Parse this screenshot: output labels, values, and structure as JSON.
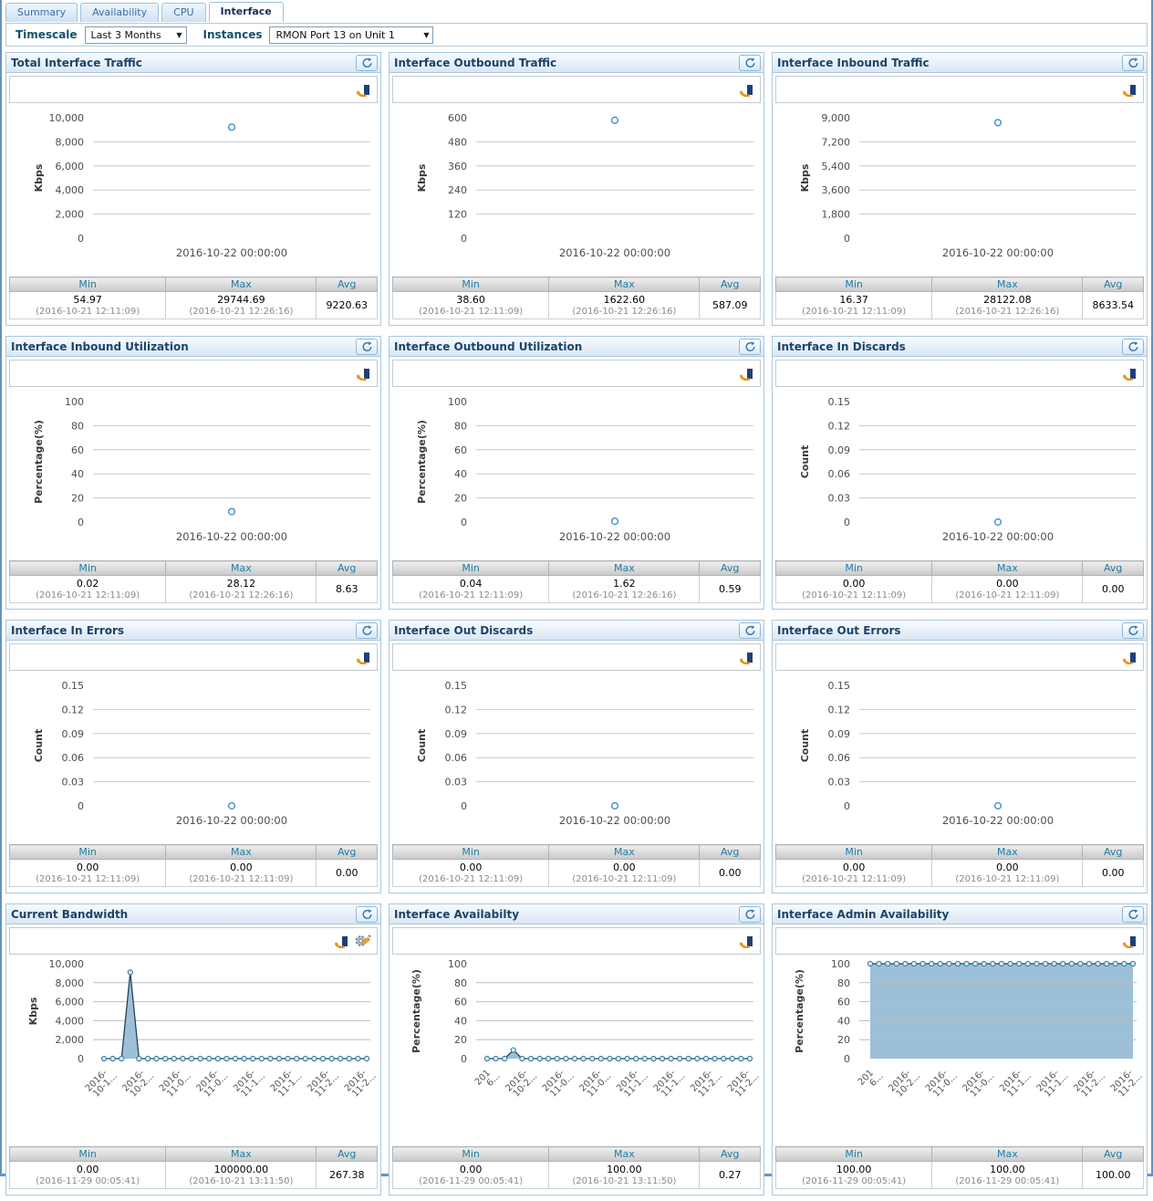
{
  "tabs": [
    {
      "label": "Summary",
      "active": false
    },
    {
      "label": "Availability",
      "active": false
    },
    {
      "label": "CPU",
      "active": false
    },
    {
      "label": "Interface",
      "active": true
    }
  ],
  "filters": {
    "timescale_label": "Timescale",
    "timescale_value": "Last 3 Months",
    "instances_label": "Instances",
    "instances_value": "RMON Port 13 on Unit 1"
  },
  "stats_headers": [
    "Min",
    "Max",
    "Avg"
  ],
  "colors": {
    "accent": "#2e6da4",
    "panel_border": "#a9c7de",
    "title_text": "#1d4368",
    "stats_header_text": "#1f7ca3",
    "area_fill": "#9cc0d8",
    "point_stroke": "#4898c8",
    "gridline": "#c9c9c9"
  },
  "chart_data": [
    {
      "title": "Total Interface Traffic",
      "type": "point",
      "ylabel": "Kbps",
      "ymax": 10000,
      "yticks": [
        "10,000",
        "8,000",
        "6,000",
        "4,000",
        "2,000",
        "0"
      ],
      "point_value": 9220.63,
      "xlabel": "2016-10-22 00:00:00",
      "icons": [
        "chart-type"
      ],
      "stats": {
        "min": "54.97",
        "min_time": "(2016-10-21 12:11:09)",
        "max": "29744.69",
        "max_time": "(2016-10-21 12:26:16)",
        "avg": "9220.63"
      }
    },
    {
      "title": "Interface Outbound Traffic",
      "type": "point",
      "ylabel": "Kbps",
      "ymax": 600,
      "yticks": [
        "600",
        "480",
        "360",
        "240",
        "120",
        "0"
      ],
      "point_value": 587.09,
      "xlabel": "2016-10-22 00:00:00",
      "icons": [
        "chart-type"
      ],
      "stats": {
        "min": "38.60",
        "min_time": "(2016-10-21 12:11:09)",
        "max": "1622.60",
        "max_time": "(2016-10-21 12:26:16)",
        "avg": "587.09"
      }
    },
    {
      "title": "Interface Inbound Traffic",
      "type": "point",
      "ylabel": "Kbps",
      "ymax": 9000,
      "yticks": [
        "9,000",
        "7,200",
        "5,400",
        "3,600",
        "1,800",
        "0"
      ],
      "point_value": 8633.54,
      "xlabel": "2016-10-22 00:00:00",
      "icons": [
        "chart-type"
      ],
      "stats": {
        "min": "16.37",
        "min_time": "(2016-10-21 12:11:09)",
        "max": "28122.08",
        "max_time": "(2016-10-21 12:26:16)",
        "avg": "8633.54"
      }
    },
    {
      "title": "Interface Inbound Utilization",
      "type": "point",
      "ylabel": "Percentage(%)",
      "ymax": 100,
      "yticks": [
        "100",
        "80",
        "60",
        "40",
        "20",
        "0"
      ],
      "point_value": 8.63,
      "xlabel": "2016-10-22 00:00:00",
      "icons": [
        "chart-type"
      ],
      "stats": {
        "min": "0.02",
        "min_time": "(2016-10-21 12:11:09)",
        "max": "28.12",
        "max_time": "(2016-10-21 12:26:16)",
        "avg": "8.63"
      }
    },
    {
      "title": "Interface Outbound Utilization",
      "type": "point",
      "ylabel": "Percentage(%)",
      "ymax": 100,
      "yticks": [
        "100",
        "80",
        "60",
        "40",
        "20",
        "0"
      ],
      "point_value": 0.59,
      "xlabel": "2016-10-22 00:00:00",
      "icons": [
        "chart-type"
      ],
      "stats": {
        "min": "0.04",
        "min_time": "(2016-10-21 12:11:09)",
        "max": "1.62",
        "max_time": "(2016-10-21 12:26:16)",
        "avg": "0.59"
      }
    },
    {
      "title": "Interface In Discards",
      "type": "point",
      "ylabel": "Count",
      "ymax": 0.15,
      "yticks": [
        "0.15",
        "0.12",
        "0.09",
        "0.06",
        "0.03",
        "0"
      ],
      "point_value": 0,
      "xlabel": "2016-10-22 00:00:00",
      "icons": [
        "chart-type"
      ],
      "stats": {
        "min": "0.00",
        "min_time": "(2016-10-21 12:11:09)",
        "max": "0.00",
        "max_time": "(2016-10-21 12:11:09)",
        "avg": "0.00"
      }
    },
    {
      "title": "Interface In Errors",
      "type": "point",
      "ylabel": "Count",
      "ymax": 0.15,
      "yticks": [
        "0.15",
        "0.12",
        "0.09",
        "0.06",
        "0.03",
        "0"
      ],
      "point_value": 0,
      "xlabel": "2016-10-22 00:00:00",
      "icons": [
        "chart-type"
      ],
      "stats": {
        "min": "0.00",
        "min_time": "(2016-10-21 12:11:09)",
        "max": "0.00",
        "max_time": "(2016-10-21 12:11:09)",
        "avg": "0.00"
      }
    },
    {
      "title": "Interface Out Discards",
      "type": "point",
      "ylabel": "Count",
      "ymax": 0.15,
      "yticks": [
        "0.15",
        "0.12",
        "0.09",
        "0.06",
        "0.03",
        "0"
      ],
      "point_value": 0,
      "xlabel": "2016-10-22 00:00:00",
      "icons": [
        "chart-type"
      ],
      "stats": {
        "min": "0.00",
        "min_time": "(2016-10-21 12:11:09)",
        "max": "0.00",
        "max_time": "(2016-10-21 12:11:09)",
        "avg": "0.00"
      }
    },
    {
      "title": "Interface Out Errors",
      "type": "point",
      "ylabel": "Count",
      "ymax": 0.15,
      "yticks": [
        "0.15",
        "0.12",
        "0.09",
        "0.06",
        "0.03",
        "0"
      ],
      "point_value": 0,
      "xlabel": "2016-10-22 00:00:00",
      "icons": [
        "chart-type"
      ],
      "stats": {
        "min": "0.00",
        "min_time": "(2016-10-21 12:11:09)",
        "max": "0.00",
        "max_time": "(2016-10-21 12:11:09)",
        "avg": "0.00"
      }
    },
    {
      "title": "Current Bandwidth",
      "type": "area",
      "ylabel": "Kbps",
      "ymax": 10000,
      "yticks": [
        "10,000",
        "8,000",
        "6,000",
        "4,000",
        "2,000",
        "0"
      ],
      "values": [
        0,
        0,
        0,
        9100,
        0,
        0,
        0,
        0,
        0,
        0,
        0,
        0,
        0,
        0,
        0,
        0,
        0,
        0,
        0,
        0,
        0,
        0,
        0,
        0,
        0,
        0,
        0,
        0,
        0,
        0,
        0
      ],
      "xticks": [
        [
          "2016-",
          "10-1..."
        ],
        [
          "2016-",
          "10-2..."
        ],
        [
          "2016-",
          "11-0..."
        ],
        [
          "2016-",
          "11-0..."
        ],
        [
          "2016-",
          "11-1..."
        ],
        [
          "2016-",
          "11-1..."
        ],
        [
          "2016-",
          "11-2..."
        ],
        [
          "2016-",
          "11-2..."
        ]
      ],
      "icons": [
        "chart-type",
        "settings"
      ],
      "stats": {
        "min": "0.00",
        "min_time": "(2016-11-29 00:05:41)",
        "max": "100000.00",
        "max_time": "(2016-10-21 13:11:50)",
        "avg": "267.38"
      }
    },
    {
      "title": "Interface Availabilty",
      "type": "area",
      "ylabel": "Percentage(%)",
      "ymax": 100,
      "yticks": [
        "100",
        "80",
        "60",
        "40",
        "20",
        "0"
      ],
      "values": [
        0,
        0,
        0,
        9,
        0,
        0,
        0,
        0,
        0,
        0,
        0,
        0,
        0,
        0,
        0,
        0,
        0,
        0,
        0,
        0,
        0,
        0,
        0,
        0,
        0,
        0,
        0,
        0,
        0,
        0,
        0
      ],
      "xticks": [
        [
          "201",
          "6..."
        ],
        [
          "2016-",
          "10-2..."
        ],
        [
          "2016-",
          "11-0..."
        ],
        [
          "2016-",
          "11-0..."
        ],
        [
          "2016-",
          "11-1..."
        ],
        [
          "2016-",
          "11-1..."
        ],
        [
          "2016-",
          "11-2..."
        ],
        [
          "2016-",
          "11-2..."
        ]
      ],
      "icons": [
        "chart-type"
      ],
      "stats": {
        "min": "0.00",
        "min_time": "(2016-11-29 00:05:41)",
        "max": "100.00",
        "max_time": "(2016-10-21 13:11:50)",
        "avg": "0.27"
      }
    },
    {
      "title": "Interface Admin Availability",
      "type": "area",
      "ylabel": "Percentage(%)",
      "ymax": 100,
      "yticks": [
        "100",
        "80",
        "60",
        "40",
        "20",
        "0"
      ],
      "values": [
        100,
        100,
        100,
        100,
        100,
        100,
        100,
        100,
        100,
        100,
        100,
        100,
        100,
        100,
        100,
        100,
        100,
        100,
        100,
        100,
        100,
        100,
        100,
        100,
        100,
        100,
        100,
        100,
        100,
        100,
        100
      ],
      "xticks": [
        [
          "201",
          "6..."
        ],
        [
          "2016-",
          "10-2..."
        ],
        [
          "2016-",
          "11-0..."
        ],
        [
          "2016-",
          "11-0..."
        ],
        [
          "2016-",
          "11-1..."
        ],
        [
          "2016-",
          "11-1..."
        ],
        [
          "2016-",
          "11-2..."
        ],
        [
          "2016-",
          "11-2..."
        ]
      ],
      "icons": [
        "chart-type"
      ],
      "stats": {
        "min": "100.00",
        "min_time": "(2016-11-29 00:05:41)",
        "max": "100.00",
        "max_time": "(2016-11-29 00:05:41)",
        "avg": "100.00"
      }
    }
  ]
}
